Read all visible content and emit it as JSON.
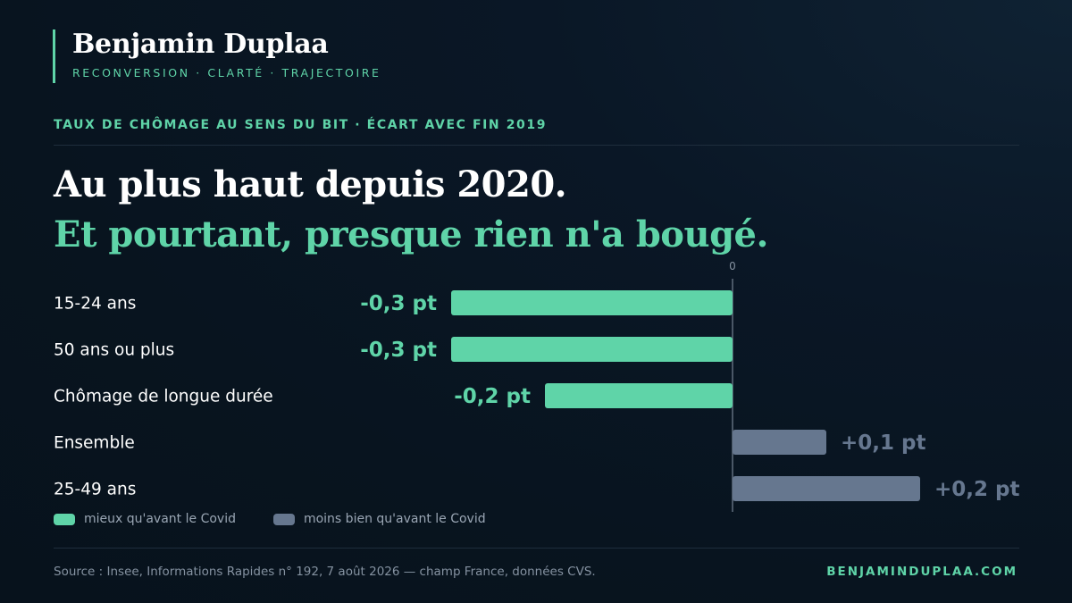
{
  "brand": {
    "name": "Benjamin Duplaa",
    "tagline": "RECONVERSION · CLARTÉ · TRAJECTOIRE"
  },
  "kicker": "TAUX DE CHÔMAGE AU SENS DU BIT · ÉCART AVEC FIN 2019",
  "headline": {
    "line1": "Au plus haut depuis 2020.",
    "line2": "Et pourtant, presque rien n'a bougé."
  },
  "colors": {
    "better": "#5fd4a8",
    "worse": "#66778f",
    "axis": "#4a5766",
    "label": "#ffffff"
  },
  "chart_data": {
    "type": "bar",
    "orientation": "horizontal",
    "categories": [
      "15-24 ans",
      "50 ans ou plus",
      "Chômage de longue durée",
      "Ensemble",
      "25-49 ans"
    ],
    "values": [
      -0.3,
      -0.3,
      -0.2,
      0.1,
      0.2
    ],
    "value_labels": [
      "-0,3 pt",
      "-0,3 pt",
      "-0,2 pt",
      "+0,1 pt",
      "+0,2 pt"
    ],
    "axis_tick": "0",
    "unit": "pt",
    "legend": [
      {
        "label": "mieux qu'avant le Covid",
        "key": "better"
      },
      {
        "label": "moins bien qu'avant le Covid",
        "key": "worse"
      }
    ]
  },
  "footer": {
    "source": "Source : Insee, Informations Rapides n° 192, 7 août 2026 — champ France, données CVS.",
    "site": "BENJAMINDUPLAA.COM"
  }
}
